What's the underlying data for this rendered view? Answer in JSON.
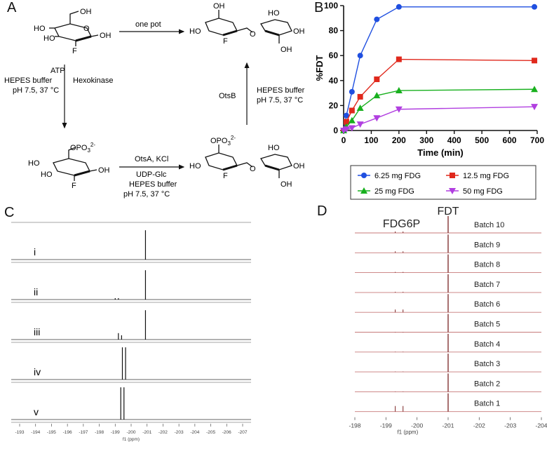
{
  "panel_labels": {
    "a": "A",
    "b": "B",
    "c": "C",
    "d": "D"
  },
  "scheme": {
    "one_pot": "one pot",
    "left_arrow": {
      "reagent1": "ATP",
      "reagent2": "HEPES buffer",
      "reagent3": "pH 7.5, 37 °C",
      "enzyme": "Hexokinase"
    },
    "right_arrow": {
      "enzyme": "OtsB",
      "reagent1": "HEPES buffer",
      "reagent2": "pH 7.5, 37 °C"
    },
    "bottom_arrow": {
      "enzyme": "OtsA, KCl",
      "reagent1": "UDP-Glc",
      "reagent2": "HEPES buffer",
      "reagent3": "pH 7.5,  37 °C"
    },
    "atoms": {
      "oh": "OH",
      "ho": "HO",
      "f": "F",
      "o": "O",
      "opo3": "OPO",
      "opo3_sub": "3",
      "opo3_sup": "2-"
    }
  },
  "chart_data": {
    "type": "line",
    "xlabel": "Time (min)",
    "ylabel": "%FDT",
    "xlim": [
      0,
      700
    ],
    "ylim": [
      0,
      100
    ],
    "xticks": [
      0,
      100,
      200,
      300,
      400,
      500,
      600,
      700
    ],
    "yticks": [
      0,
      20,
      40,
      60,
      80,
      100
    ],
    "legend_position": "bottom",
    "series": [
      {
        "name": "6.25 mg FDG",
        "color": "#1f4fe0",
        "marker": "circle",
        "x": [
          0,
          10,
          30,
          60,
          120,
          200,
          690
        ],
        "y": [
          0,
          12,
          31,
          60,
          89,
          99,
          99
        ]
      },
      {
        "name": "12.5 mg FDG",
        "color": "#e0281c",
        "marker": "square",
        "x": [
          0,
          10,
          30,
          60,
          120,
          200,
          690
        ],
        "y": [
          0,
          7,
          16,
          27,
          41,
          57,
          56
        ]
      },
      {
        "name": "25 mg FDG",
        "color": "#18b01e",
        "marker": "triangle-up",
        "x": [
          0,
          10,
          30,
          60,
          120,
          200,
          690
        ],
        "y": [
          0,
          3,
          8,
          18,
          28,
          32,
          33
        ]
      },
      {
        "name": "50 mg FDG",
        "color": "#b13fe0",
        "marker": "triangle-down",
        "x": [
          0,
          10,
          30,
          60,
          120,
          200,
          690
        ],
        "y": [
          0,
          1,
          2,
          5,
          10,
          17,
          19
        ]
      }
    ]
  },
  "panel_c": {
    "rows": [
      "i",
      "ii",
      "iii",
      "iv",
      "v"
    ],
    "axis_ticks": [
      "-193",
      "-194",
      "-195",
      "-196",
      "-197",
      "-198",
      "-199",
      "-200",
      "-201",
      "-202",
      "-203",
      "-204",
      "-205",
      "-206",
      "-207"
    ],
    "axis_title": "f1 (ppm)"
  },
  "panel_d": {
    "label_fdg6p": "FDG6P",
    "label_fdt": "FDT",
    "batches": [
      "Batch 10",
      "Batch 9",
      "Batch 8",
      "Batch 7",
      "Batch 6",
      "Batch 5",
      "Batch 4",
      "Batch 3",
      "Batch 2",
      "Batch 1"
    ],
    "axis_ticks": [
      "-198",
      "-199",
      "-200",
      "-201",
      "-202",
      "-203",
      "-204"
    ],
    "axis_title": "f1 (ppm)"
  }
}
